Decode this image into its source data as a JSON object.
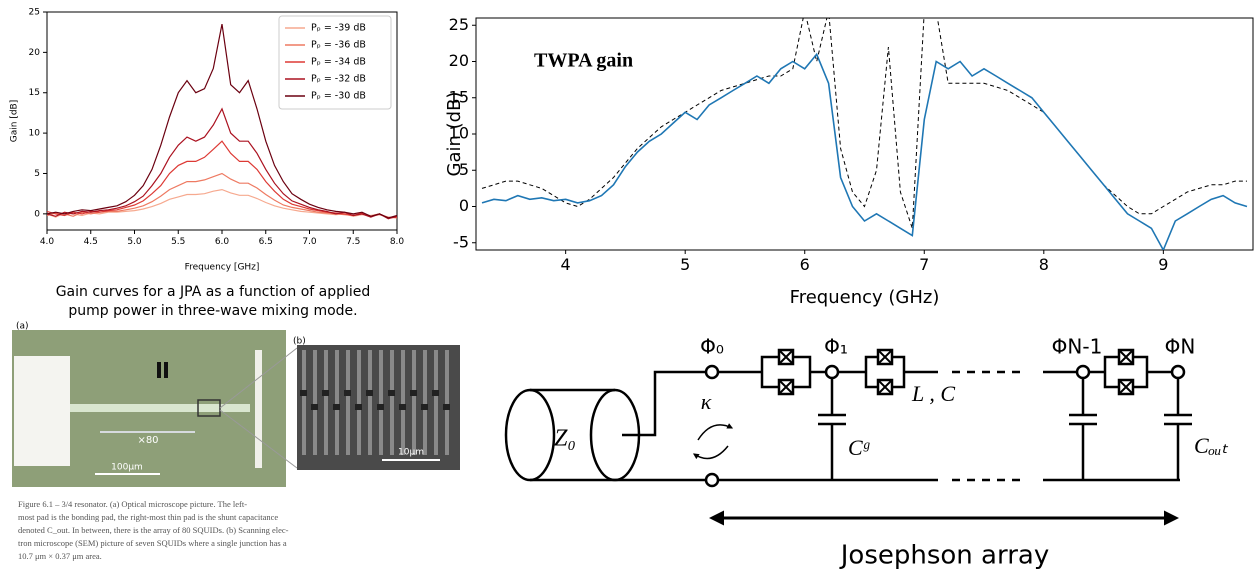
{
  "chart_data": [
    {
      "type": "line",
      "x_label": "Frequency [GHz]",
      "y_label": "Gain [dB]",
      "xlim": [
        4.0,
        8.0
      ],
      "ylim": [
        -2,
        25
      ],
      "xticks": [
        {
          "value": 4.0,
          "label": "4.0"
        },
        {
          "value": 4.5,
          "label": "4.5"
        },
        {
          "value": 5.0,
          "label": "5.0"
        },
        {
          "value": 5.5,
          "label": "5.5"
        },
        {
          "value": 6.0,
          "label": "6.0"
        },
        {
          "value": 6.5,
          "label": "6.5"
        },
        {
          "value": 7.0,
          "label": "7.0"
        },
        {
          "value": 7.5,
          "label": "7.5"
        },
        {
          "value": 8.0,
          "label": "8.0"
        }
      ],
      "yticks": [
        0,
        5,
        10,
        15,
        20,
        25
      ],
      "legend": "upper right",
      "x": [
        4.0,
        4.1,
        4.2,
        4.3,
        4.4,
        4.5,
        4.6,
        4.7,
        4.8,
        4.9,
        5.0,
        5.1,
        5.2,
        5.3,
        5.4,
        5.5,
        5.6,
        5.7,
        5.8,
        5.9,
        6.0,
        6.1,
        6.2,
        6.3,
        6.4,
        6.5,
        6.6,
        6.7,
        6.8,
        6.9,
        7.0,
        7.1,
        7.2,
        7.3,
        7.4,
        7.5,
        7.6,
        7.7,
        7.8,
        7.9,
        8.0
      ],
      "series": [
        {
          "name": "Pₚ = -39 dB",
          "color": "#f6a98f",
          "linestyle": "solid",
          "values": [
            0,
            -0.4,
            0.1,
            0,
            -0.2,
            0.1,
            0,
            0.2,
            0.2,
            0.3,
            0.4,
            0.6,
            0.9,
            1.3,
            1.8,
            2.1,
            2.4,
            2.4,
            2.5,
            2.8,
            3,
            2.6,
            2.3,
            2.3,
            1.9,
            1.4,
            1.0,
            0.7,
            0.5,
            0.3,
            0.2,
            0.1,
            0,
            -0.1,
            0,
            -0.3,
            -0.1,
            -0.2,
            0,
            -0.5,
            -0.3
          ]
        },
        {
          "name": "Pₚ = -36 dB",
          "color": "#ee7a62",
          "linestyle": "solid",
          "values": [
            -0.2,
            0.1,
            0,
            -0.3,
            0.2,
            0,
            0.2,
            0.3,
            0.3,
            0.5,
            0.7,
            1.0,
            1.5,
            2.2,
            3,
            3.5,
            4,
            4,
            4.2,
            4.6,
            5,
            4.3,
            3.8,
            3.8,
            3.2,
            2.4,
            1.7,
            1.1,
            0.8,
            0.6,
            0.4,
            0.2,
            0.1,
            0,
            -0.1,
            -0.2,
            0,
            -0.3,
            -0.1,
            -0.4,
            -0.5
          ]
        },
        {
          "name": "Pₚ = -34 dB",
          "color": "#dd3a35",
          "linestyle": "solid",
          "values": [
            0.3,
            0,
            -0.2,
            0.2,
            0,
            0.3,
            0.2,
            0.4,
            0.5,
            0.8,
            1.1,
            1.6,
            2.5,
            3.5,
            5,
            6,
            6.5,
            6.5,
            7,
            8,
            9,
            7.5,
            6.5,
            6.5,
            5.5,
            4,
            2.8,
            1.8,
            1.2,
            0.9,
            0.6,
            0.4,
            0.2,
            0.1,
            0,
            -0.2,
            0.1,
            -0.3,
            0,
            -0.5,
            -0.4
          ]
        },
        {
          "name": "Pₚ = -32 dB",
          "color": "#ab1220",
          "linestyle": "solid",
          "values": [
            0,
            -0.3,
            0.2,
            0,
            0.3,
            0.2,
            0.4,
            0.5,
            0.7,
            1.0,
            1.5,
            2.2,
            3.5,
            5,
            7,
            8.5,
            9.5,
            9,
            9.5,
            11,
            13,
            10,
            9,
            9,
            7.5,
            5.5,
            3.8,
            2.5,
            1.6,
            1.2,
            0.8,
            0.5,
            0.3,
            0,
            0.2,
            -0.2,
            0,
            -0.4,
            0,
            -0.6,
            -0.3
          ]
        },
        {
          "name": "Pₚ = -30 dB",
          "color": "#6b0010",
          "linestyle": "solid",
          "values": [
            0,
            0.2,
            0,
            0.3,
            0.5,
            0.4,
            0.6,
            0.8,
            1.0,
            1.5,
            2.3,
            3.5,
            5.5,
            8.5,
            12,
            15,
            16.5,
            15,
            15.5,
            18,
            23.5,
            16,
            15,
            16.5,
            13,
            9,
            6,
            4,
            2.5,
            1.8,
            1.2,
            0.8,
            0.5,
            0.3,
            0.2,
            0,
            0.2,
            -0.3,
            0,
            -0.5,
            -0.2
          ]
        }
      ]
    },
    {
      "type": "line",
      "annotation": "TWPA gain",
      "x_label": "Frequency (GHz)",
      "y_label": "Gain (dB)",
      "xlim": [
        3.25,
        9.75
      ],
      "ylim": [
        -6,
        26
      ],
      "xticks": [
        4,
        5,
        6,
        7,
        8,
        9
      ],
      "yticks": [
        -5,
        0,
        5,
        10,
        15,
        20,
        25
      ],
      "x": [
        3.3,
        3.4,
        3.5,
        3.6,
        3.7,
        3.8,
        3.9,
        4.0,
        4.1,
        4.2,
        4.3,
        4.4,
        4.5,
        4.6,
        4.7,
        4.8,
        4.9,
        5.0,
        5.1,
        5.2,
        5.3,
        5.4,
        5.5,
        5.6,
        5.7,
        5.8,
        5.9,
        6.0,
        6.1,
        6.2,
        6.3,
        6.4,
        6.5,
        6.6,
        6.7,
        6.8,
        6.9,
        7.0,
        7.1,
        7.2,
        7.3,
        7.4,
        7.5,
        7.6,
        7.7,
        7.8,
        7.9,
        8.0,
        8.1,
        8.2,
        8.3,
        8.4,
        8.5,
        8.6,
        8.7,
        8.8,
        8.9,
        9.0,
        9.1,
        9.2,
        9.3,
        9.4,
        9.5,
        9.6,
        9.7
      ],
      "series": [
        {
          "color": "#000000",
          "linestyle": "dashed",
          "values": [
            2.5,
            3,
            3.5,
            3.5,
            3,
            2.5,
            1.5,
            0.5,
            0,
            1,
            2.5,
            4,
            6,
            8,
            9.5,
            11,
            12,
            13,
            14,
            15,
            16,
            16.5,
            17,
            17.5,
            18,
            18,
            19,
            27,
            20,
            27,
            8,
            2,
            0,
            5,
            22,
            2,
            -3,
            27,
            27,
            17,
            17,
            17,
            17,
            16.5,
            16,
            15,
            14,
            13,
            11,
            9,
            7,
            5,
            3,
            1.5,
            0,
            -1,
            -1,
            0,
            1,
            2,
            2.5,
            3,
            3,
            3.5,
            3.5
          ]
        },
        {
          "color": "#1f77b4",
          "linestyle": "solid",
          "values": [
            0.5,
            1,
            0.8,
            1.5,
            1,
            1.2,
            0.8,
            1,
            0.5,
            0.8,
            1.5,
            3,
            5.5,
            7.5,
            9,
            10,
            11.5,
            13,
            12,
            14,
            15,
            16,
            17,
            18,
            17,
            19,
            20,
            19,
            21,
            17,
            4,
            0,
            -2,
            -1,
            -2,
            -3,
            -4,
            12,
            20,
            19,
            20,
            18,
            19,
            18,
            17,
            16,
            15,
            13,
            11,
            9,
            7,
            5,
            3,
            1,
            -1,
            -2,
            -3,
            -6,
            -2,
            -1,
            0,
            1,
            1.5,
            0.5,
            0
          ]
        }
      ]
    }
  ],
  "jpa_caption": [
    "Gain curves for a JPA as a function of applied",
    "pump power in three-wave mixing mode."
  ],
  "micrograph": {
    "panel_a": "(a)",
    "panel_b": "(b)",
    "array_count": "×80",
    "scale_a": "100μm",
    "scale_b": "10μm",
    "caption": [
      "Figure 6.1 – 3/4 resonator. (a) Optical microscope picture. The left-",
      "most pad is the bonding pad, the right-most thin pad is the shunt capacitance",
      "denoted C_out. In between, there is the array of 80 SQUIDs. (b) Scanning elec-",
      "tron microscope (SEM) picture of seven SQUIDs where a single junction has a",
      "10.7 μm × 0.37 μm area."
    ]
  },
  "circuit": {
    "phi": [
      "Φ₀",
      "Φ₁",
      "ΦN-1",
      "ΦN"
    ],
    "kappa": "κ",
    "inductance": "L , C",
    "ground_cap": "Cᵍ",
    "out_cap": "Cₒᵤₜ",
    "impedance": "Z₀",
    "array_label": "Josephson array"
  }
}
